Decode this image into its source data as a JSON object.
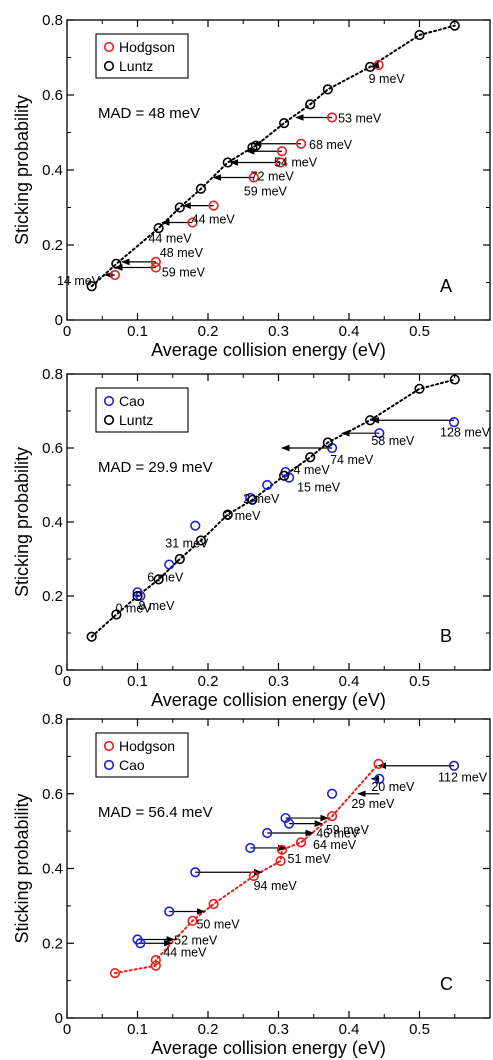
{
  "chart_data": [
    {
      "type": "scatter",
      "panel": "A",
      "xlabel": "Average collision energy (eV)",
      "ylabel": "Sticking probability",
      "xlim": [
        0,
        0.6
      ],
      "ylim": [
        0,
        0.8
      ],
      "xticks": [
        "0",
        "0.1",
        "0.2",
        "0.3",
        "0.4",
        "0.5"
      ],
      "yticks": [
        "0",
        "0.2",
        "0.4",
        "0.6",
        "0.8"
      ],
      "mad": "MAD = 48 meV",
      "legend_position": "top-left",
      "series": [
        {
          "name": "Hodgson",
          "color": "#e8201c",
          "x": [
            0.068,
            0.126,
            0.126,
            0.178,
            0.208,
            0.265,
            0.303,
            0.305,
            0.332,
            0.376,
            0.442
          ],
          "y": [
            0.12,
            0.14,
            0.155,
            0.26,
            0.305,
            0.38,
            0.42,
            0.45,
            0.47,
            0.54,
            0.68
          ]
        },
        {
          "name": "Luntz",
          "color": "#000000",
          "dotted_line": true,
          "x": [
            0.035,
            0.07,
            0.13,
            0.16,
            0.19,
            0.228,
            0.263,
            0.268,
            0.308,
            0.345,
            0.37,
            0.43,
            0.5,
            0.55
          ],
          "y": [
            0.09,
            0.15,
            0.245,
            0.3,
            0.35,
            0.42,
            0.46,
            0.465,
            0.525,
            0.575,
            0.615,
            0.675,
            0.76,
            0.785
          ]
        }
      ],
      "arrows": [
        {
          "from": [
            0.442,
            0.68
          ],
          "to": [
            0.432,
            0.675
          ],
          "label": "9 meV"
        },
        {
          "from": [
            0.376,
            0.54
          ],
          "to": [
            0.325,
            0.54
          ],
          "label": "53 meV"
        },
        {
          "from": [
            0.332,
            0.47
          ],
          "to": [
            0.265,
            0.47
          ],
          "label": "68 meV"
        },
        {
          "from": [
            0.305,
            0.45
          ],
          "to": [
            0.255,
            0.45
          ],
          "label": "54 meV"
        },
        {
          "from": [
            0.303,
            0.42
          ],
          "to": [
            0.232,
            0.42
          ],
          "label": "72 meV"
        },
        {
          "from": [
            0.265,
            0.38
          ],
          "to": [
            0.208,
            0.38
          ],
          "label": "59 meV"
        },
        {
          "from": [
            0.208,
            0.305
          ],
          "to": [
            0.165,
            0.305
          ],
          "label": "44 meV"
        },
        {
          "from": [
            0.178,
            0.26
          ],
          "to": [
            0.135,
            0.26
          ],
          "label": "44 meV"
        },
        {
          "from": [
            0.126,
            0.155
          ],
          "to": [
            0.078,
            0.155
          ],
          "label": "48 meV"
        },
        {
          "from": [
            0.126,
            0.14
          ],
          "to": [
            0.068,
            0.14
          ],
          "label": "59 meV"
        },
        {
          "from": [
            0.068,
            0.12
          ],
          "to": [
            0.054,
            0.12
          ],
          "label": "14 meV"
        }
      ]
    },
    {
      "type": "scatter",
      "panel": "B",
      "xlabel": "Average collision energy (eV)",
      "ylabel": "Sticking probability",
      "xlim": [
        0,
        0.6
      ],
      "ylim": [
        0,
        0.8
      ],
      "xticks": [
        "0",
        "0.1",
        "0.2",
        "0.3",
        "0.4",
        "0.5"
      ],
      "yticks": [
        "0",
        "0.2",
        "0.4",
        "0.6",
        "0.8"
      ],
      "mad": "MAD = 29.9 meV",
      "legend_position": "top-left",
      "series": [
        {
          "name": "Cao",
          "color": "#1f1fd6",
          "x": [
            0.1,
            0.104,
            0.145,
            0.182,
            0.26,
            0.284,
            0.31,
            0.315,
            0.376,
            0.443,
            0.549
          ],
          "y": [
            0.21,
            0.2,
            0.285,
            0.39,
            0.465,
            0.5,
            0.535,
            0.52,
            0.6,
            0.64,
            0.67
          ]
        },
        {
          "name": "Luntz",
          "color": "#000000",
          "dotted_line": true,
          "x": [
            0.035,
            0.07,
            0.1,
            0.13,
            0.16,
            0.19,
            0.228,
            0.263,
            0.308,
            0.345,
            0.37,
            0.43,
            0.5,
            0.55
          ],
          "y": [
            0.09,
            0.15,
            0.2,
            0.245,
            0.3,
            0.35,
            0.42,
            0.46,
            0.525,
            0.575,
            0.615,
            0.675,
            0.76,
            0.785
          ]
        }
      ],
      "arrows": [
        {
          "from": [
            0.549,
            0.675
          ],
          "to": [
            0.432,
            0.675
          ],
          "label": "128 meV"
        },
        {
          "from": [
            0.443,
            0.64
          ],
          "to": [
            0.39,
            0.64
          ],
          "label": "58 meV"
        },
        {
          "from": [
            0.376,
            0.6
          ],
          "to": [
            0.305,
            0.6
          ],
          "label": "74 meV"
        }
      ],
      "labels": [
        {
          "at": [
            0.31,
            0.535
          ],
          "label": "4 meV"
        },
        {
          "at": [
            0.315,
            0.52
          ],
          "label": "15 meV"
        },
        {
          "at": [
            0.284,
            0.5
          ],
          "label": "2 meV"
        },
        {
          "at": [
            0.26,
            0.465
          ],
          "label": "3 meV"
        },
        {
          "at": [
            0.182,
            0.39
          ],
          "label": "31 meV"
        },
        {
          "at": [
            0.145,
            0.285
          ],
          "label": "6 meV"
        },
        {
          "at": [
            0.104,
            0.2
          ],
          "label": "8 meV"
        },
        {
          "at": [
            0.1,
            0.21
          ],
          "label": "0 meV"
        }
      ]
    },
    {
      "type": "scatter",
      "panel": "C",
      "xlabel": "Average collision energy (eV)",
      "ylabel": "Sticking probability",
      "xlim": [
        0,
        0.6
      ],
      "ylim": [
        0,
        0.8
      ],
      "xticks": [
        "0",
        "0.1",
        "0.2",
        "0.3",
        "0.4",
        "0.5"
      ],
      "yticks": [
        "0",
        "0.2",
        "0.4",
        "0.6",
        "0.8"
      ],
      "mad": "MAD = 56.4 meV",
      "legend_position": "top-left",
      "series": [
        {
          "name": "Hodgson",
          "color": "#e8201c",
          "dotted_line": true,
          "x": [
            0.068,
            0.126,
            0.126,
            0.178,
            0.208,
            0.265,
            0.303,
            0.305,
            0.332,
            0.376,
            0.442
          ],
          "y": [
            0.12,
            0.14,
            0.155,
            0.26,
            0.305,
            0.38,
            0.42,
            0.45,
            0.47,
            0.54,
            0.68
          ]
        },
        {
          "name": "Cao",
          "color": "#1f1fd6",
          "x": [
            0.1,
            0.104,
            0.145,
            0.182,
            0.26,
            0.284,
            0.31,
            0.315,
            0.376,
            0.443,
            0.549
          ],
          "y": [
            0.21,
            0.2,
            0.285,
            0.39,
            0.455,
            0.495,
            0.535,
            0.52,
            0.6,
            0.64,
            0.675
          ]
        }
      ],
      "arrows": [
        {
          "from": [
            0.549,
            0.675
          ],
          "to": [
            0.442,
            0.675
          ],
          "label": "112 meV"
        },
        {
          "from": [
            0.443,
            0.64
          ],
          "to": [
            0.432,
            0.64
          ],
          "label": "20 meV"
        },
        {
          "from": [
            0.443,
            0.6
          ],
          "to": [
            0.413,
            0.6
          ],
          "label": "29 meV"
        },
        {
          "from": [
            0.31,
            0.535
          ],
          "to": [
            0.37,
            0.535
          ],
          "label": "59 meV"
        },
        {
          "from": [
            0.315,
            0.52
          ],
          "to": [
            0.362,
            0.52
          ],
          "label": "46 meV"
        },
        {
          "from": [
            0.284,
            0.495
          ],
          "to": [
            0.349,
            0.495
          ],
          "label": "64 meV"
        },
        {
          "from": [
            0.26,
            0.455
          ],
          "to": [
            0.31,
            0.455
          ],
          "label": "51 meV"
        },
        {
          "from": [
            0.182,
            0.39
          ],
          "to": [
            0.276,
            0.39
          ],
          "label": "94 meV"
        },
        {
          "from": [
            0.145,
            0.285
          ],
          "to": [
            0.195,
            0.285
          ],
          "label": "50 meV"
        },
        {
          "from": [
            0.1,
            0.21
          ],
          "to": [
            0.152,
            0.21
          ],
          "label": "52 meV"
        },
        {
          "from": [
            0.104,
            0.2
          ],
          "to": [
            0.148,
            0.2
          ],
          "label": "44 meV"
        }
      ]
    }
  ]
}
